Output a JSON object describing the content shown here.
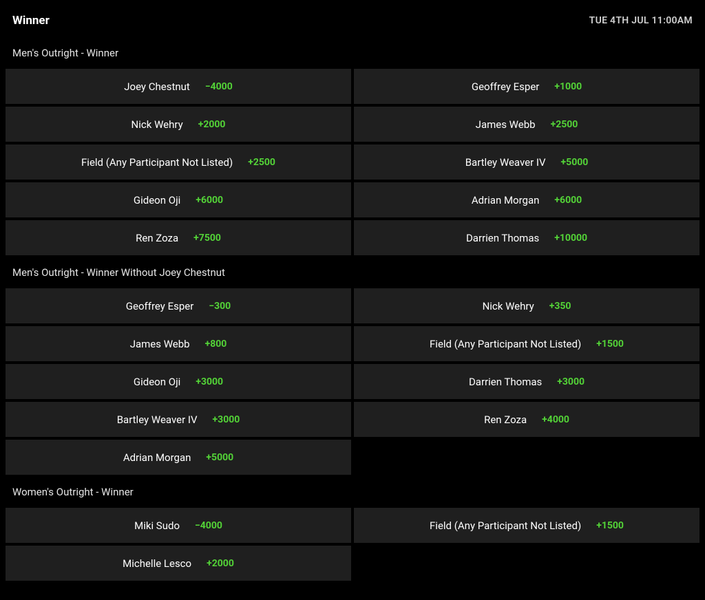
{
  "header": {
    "title": "Winner",
    "datetime": "TUE 4TH JUL 11:00AM"
  },
  "colors": {
    "background": "#000000",
    "cell_background": "#1f1f1f",
    "text_primary": "#ffffff",
    "text_secondary": "#e5e5e5",
    "odds_positive": "#53d337"
  },
  "markets": [
    {
      "title": "Men's Outright - Winner",
      "selections": [
        {
          "name": "Joey Chestnut",
          "odds": "−4000"
        },
        {
          "name": "Geoffrey Esper",
          "odds": "+1000"
        },
        {
          "name": "Nick Wehry",
          "odds": "+2000"
        },
        {
          "name": "James Webb",
          "odds": "+2500"
        },
        {
          "name": "Field (Any Participant Not Listed)",
          "odds": "+2500"
        },
        {
          "name": "Bartley Weaver IV",
          "odds": "+5000"
        },
        {
          "name": "Gideon Oji",
          "odds": "+6000"
        },
        {
          "name": "Adrian Morgan",
          "odds": "+6000"
        },
        {
          "name": "Ren Zoza",
          "odds": "+7500"
        },
        {
          "name": "Darrien Thomas",
          "odds": "+10000"
        }
      ]
    },
    {
      "title": "Men's Outright - Winner Without Joey Chestnut",
      "selections": [
        {
          "name": "Geoffrey Esper",
          "odds": "−300"
        },
        {
          "name": "Nick Wehry",
          "odds": "+350"
        },
        {
          "name": "James Webb",
          "odds": "+800"
        },
        {
          "name": "Field (Any Participant Not Listed)",
          "odds": "+1500"
        },
        {
          "name": "Gideon Oji",
          "odds": "+3000"
        },
        {
          "name": "Darrien Thomas",
          "odds": "+3000"
        },
        {
          "name": "Bartley Weaver IV",
          "odds": "+3000"
        },
        {
          "name": "Ren Zoza",
          "odds": "+4000"
        },
        {
          "name": "Adrian Morgan",
          "odds": "+5000"
        }
      ]
    },
    {
      "title": "Women's Outright - Winner",
      "selections": [
        {
          "name": "Miki Sudo",
          "odds": "−4000"
        },
        {
          "name": "Field (Any Participant Not Listed)",
          "odds": "+1500"
        },
        {
          "name": "Michelle Lesco",
          "odds": "+2000"
        }
      ]
    }
  ]
}
